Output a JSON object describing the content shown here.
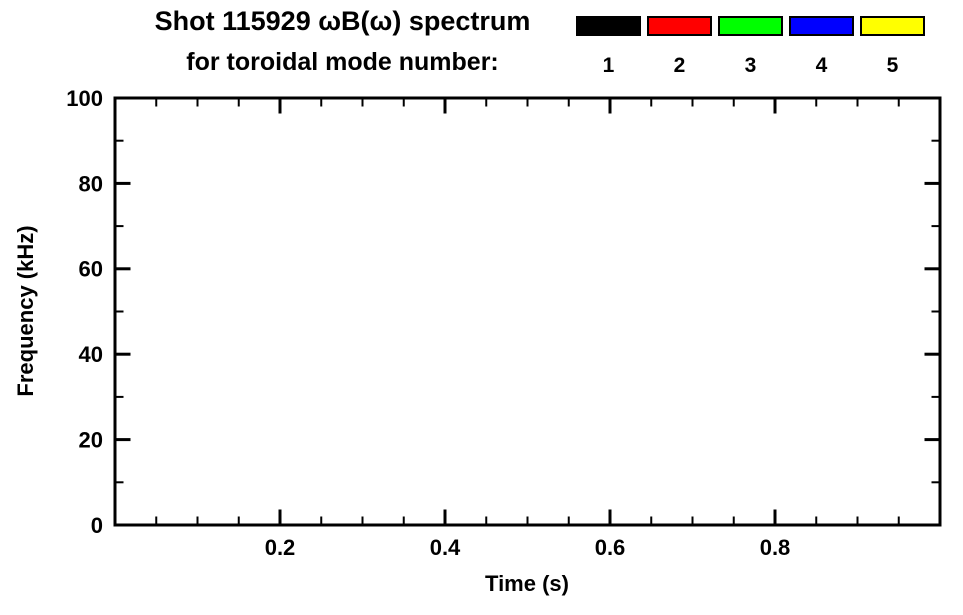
{
  "figure": {
    "title_line1": "Shot 115929 ωB(ω) spectrum",
    "title_line2": "for toroidal mode number:"
  },
  "legend": {
    "entries": [
      {
        "label": "1",
        "color": "#000000"
      },
      {
        "label": "2",
        "color": "#ff0000"
      },
      {
        "label": "3",
        "color": "#00ff00"
      },
      {
        "label": "4",
        "color": "#0000ff"
      },
      {
        "label": "5",
        "color": "#ffff00"
      }
    ]
  },
  "chart_data": {
    "type": "heatmap",
    "title": "Shot 115929 ωB(ω) spectrum for toroidal mode number: 1 2 3 4 5",
    "xlabel": "Time (s)",
    "ylabel": "Frequency (kHz)",
    "xlim": [
      0,
      1.0
    ],
    "ylim": [
      0,
      100
    ],
    "x_ticks": [
      0.2,
      0.4,
      0.6,
      0.8
    ],
    "x_tick_labels": [
      "0.2",
      "0.4",
      "0.6",
      "0.8"
    ],
    "y_ticks": [
      0,
      20,
      40,
      60,
      80,
      100
    ],
    "y_tick_labels": [
      "0",
      "20",
      "40",
      "60",
      "80",
      "100"
    ],
    "x_minor_step": 0.05,
    "y_minor_step": 10,
    "grid": false,
    "legend_position": "top-right",
    "legend_labels": [
      "1",
      "2",
      "3",
      "4",
      "5"
    ],
    "legend_colors": [
      "#000000",
      "#ff0000",
      "#00ff00",
      "#0000ff",
      "#ffff00"
    ],
    "series": []
  }
}
